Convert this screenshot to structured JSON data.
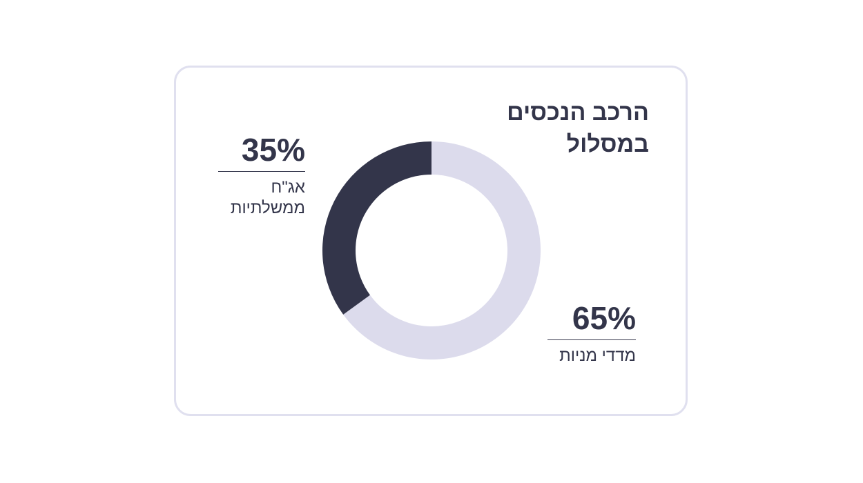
{
  "chart_data": {
    "type": "pie",
    "variant": "donut",
    "title_lines": [
      "הרכב הנכסים",
      "במסלול"
    ],
    "slices": [
      {
        "label_lines": [
          "מדדי מניות"
        ],
        "value": 65,
        "value_label": "65%",
        "color": "#dcdbec"
      },
      {
        "label_lines": [
          "אג\"ח",
          "ממשלתיות"
        ],
        "value": 35,
        "value_label": "35%",
        "color": "#33354a"
      }
    ],
    "legend": "none"
  }
}
